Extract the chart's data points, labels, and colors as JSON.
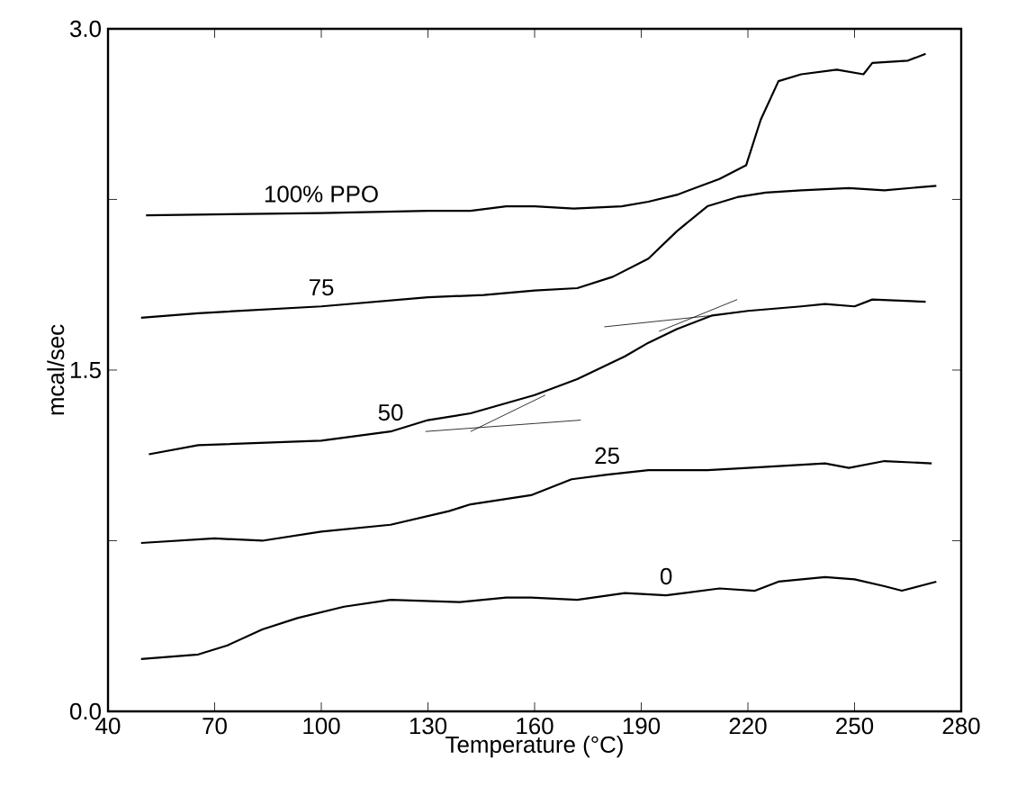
{
  "chart_data": {
    "type": "line",
    "xlabel": "Temperature (°C)",
    "ylabel": "mcal/sec",
    "xlim": [
      40,
      280
    ],
    "ylim": [
      0,
      3
    ],
    "xticks": [
      40,
      70,
      100,
      130,
      160,
      190,
      220,
      250,
      280
    ],
    "yticks": [
      {
        "value": 0,
        "label": "0.0"
      },
      {
        "value": 0.75,
        "label": null
      },
      1.5,
      {
        "value": 2.25,
        "label": null
      },
      {
        "value": 3,
        "label": "3.0"
      }
    ],
    "grid": false,
    "legend": false,
    "marker": "none",
    "line_style": "solid",
    "series": [
      {
        "name": "100% PPO",
        "color": "#000000",
        "x": [
          50.7,
          100,
          130,
          142,
          152,
          160,
          171,
          184.5,
          192,
          200,
          212,
          219.5,
          223.6,
          228.6,
          235,
          245,
          252.5,
          255,
          265,
          270
        ],
        "values": [
          2.18,
          2.19,
          2.2,
          2.2,
          2.22,
          2.22,
          2.21,
          2.22,
          2.24,
          2.27,
          2.34,
          2.4,
          2.6,
          2.77,
          2.8,
          2.82,
          2.8,
          2.85,
          2.86,
          2.89
        ]
      },
      {
        "name": "75",
        "color": "#000000",
        "x": [
          49.3,
          65.4,
          100,
          130,
          145.7,
          160,
          172,
          182,
          192,
          200,
          208.6,
          217,
          225,
          235,
          248.4,
          258.4,
          273
        ],
        "values": [
          1.73,
          1.75,
          1.78,
          1.82,
          1.83,
          1.85,
          1.86,
          1.91,
          1.99,
          2.11,
          2.22,
          2.26,
          2.28,
          2.29,
          2.3,
          2.29,
          2.31
        ]
      },
      {
        "name": "50",
        "color": "#000000",
        "x": [
          51.5,
          65.4,
          100,
          119.5,
          130,
          142,
          160,
          172,
          185.4,
          192,
          200,
          210,
          220,
          235,
          241.7,
          250,
          255,
          270
        ],
        "values": [
          1.13,
          1.17,
          1.19,
          1.23,
          1.28,
          1.31,
          1.39,
          1.46,
          1.56,
          1.62,
          1.68,
          1.74,
          1.76,
          1.78,
          1.79,
          1.78,
          1.81,
          1.8
        ]
      },
      {
        "name": "25",
        "color": "#000000",
        "x": [
          49.3,
          70,
          83.4,
          100,
          119.5,
          135.9,
          142,
          159,
          170.4,
          180.4,
          192,
          208.6,
          220,
          241.7,
          248.4,
          258.4,
          271.7
        ],
        "values": [
          0.74,
          0.76,
          0.75,
          0.79,
          0.82,
          0.88,
          0.91,
          0.95,
          1.02,
          1.04,
          1.06,
          1.06,
          1.07,
          1.09,
          1.07,
          1.1,
          1.09
        ]
      },
      {
        "name": "0",
        "color": "#000000",
        "x": [
          49.3,
          65.4,
          73.6,
          83.4,
          93.3,
          106.4,
          119.5,
          139,
          152,
          159,
          172,
          185.4,
          197,
          212,
          222,
          228.6,
          241.7,
          250,
          258.4,
          263.3,
          273
        ],
        "values": [
          0.23,
          0.25,
          0.29,
          0.36,
          0.41,
          0.46,
          0.49,
          0.48,
          0.5,
          0.5,
          0.49,
          0.52,
          0.51,
          0.54,
          0.53,
          0.57,
          0.59,
          0.58,
          0.55,
          0.53,
          0.57
        ]
      },
      {
        "type": "line",
        "color": "#000000",
        "x": [
          129.3,
          173
        ],
        "values": [
          1.23,
          1.28
        ]
      },
      {
        "type": "line",
        "color": "#000000",
        "x": [
          142,
          163
        ],
        "values": [
          1.23,
          1.39
        ]
      },
      {
        "type": "line",
        "color": "#000000",
        "x": [
          179.6,
          210
        ],
        "values": [
          1.69,
          1.74
        ]
      },
      {
        "type": "line",
        "color": "#000000",
        "x": [
          195,
          217
        ],
        "values": [
          1.67,
          1.81
        ]
      }
    ]
  }
}
